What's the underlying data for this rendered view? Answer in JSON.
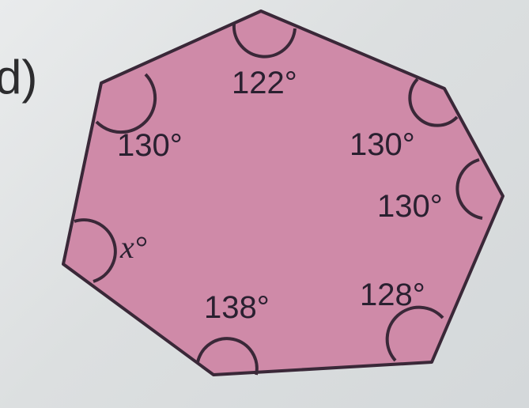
{
  "part_label": "d)",
  "colors": {
    "fill": "#cf8aa8",
    "stroke": "#3a2838",
    "text": "#2a2030"
  },
  "angles": [
    {
      "id": "top",
      "label": "122°"
    },
    {
      "id": "upper-right",
      "label": "130°"
    },
    {
      "id": "right",
      "label": "130°"
    },
    {
      "id": "lower-right",
      "label": "128°"
    },
    {
      "id": "bottom",
      "label": "138°"
    },
    {
      "id": "left",
      "label": "x°"
    },
    {
      "id": "upper-left",
      "label": "130°"
    }
  ]
}
